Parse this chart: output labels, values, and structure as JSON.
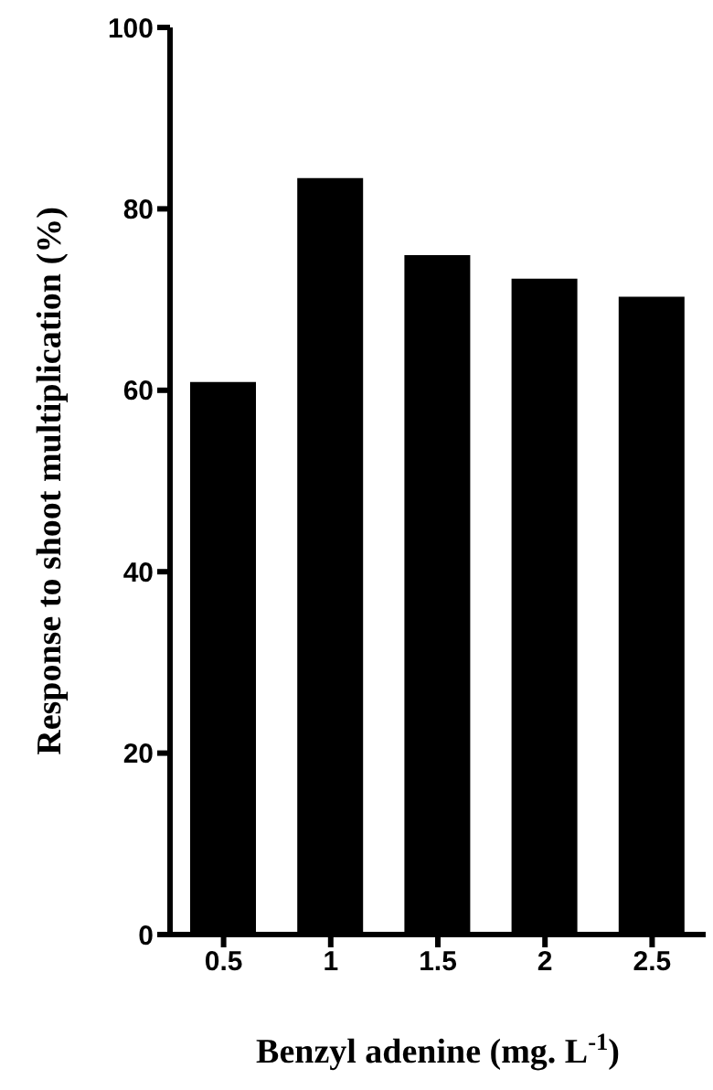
{
  "chart_data": {
    "type": "bar",
    "categories": [
      "0.5",
      "1",
      "1.5",
      "2",
      "2.5"
    ],
    "values": [
      60.9,
      83.4,
      74.9,
      72.3,
      70.3
    ],
    "color": "#000000",
    "ylim": [
      0,
      100
    ],
    "yticks": [
      0,
      20,
      40,
      60,
      80,
      100
    ],
    "xlabel": "Benzyl adenine (mg. L$^{-1}$)",
    "ylabel": "Response to shoot multiplication (%)",
    "grid": false,
    "legend": false
  }
}
